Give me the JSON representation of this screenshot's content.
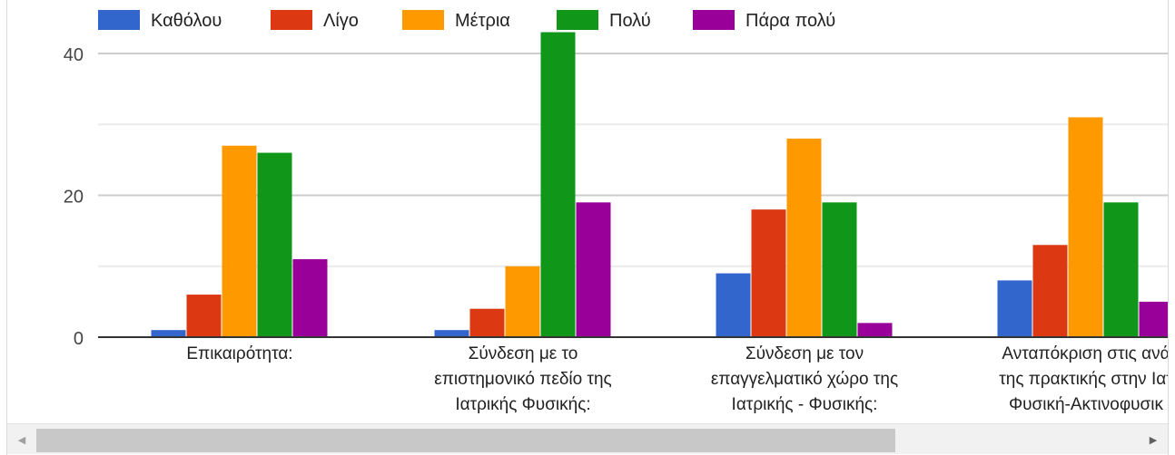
{
  "chart_data": {
    "type": "bar",
    "categories": [
      [
        "Επικαιρότητα:"
      ],
      [
        "Σύνδεση με το",
        "επιστημονικό πεδίο της",
        "Ιατρικής Φυσικής:"
      ],
      [
        "Σύνδεση με τον",
        "επαγγελματικό χώρο της",
        "Ιατρικής - Φυσικής:"
      ],
      [
        "Ανταπόκριση στις ανά",
        "της πρακτικής στην Ιατ",
        "Φυσική-Ακτινοφυσικ"
      ]
    ],
    "series": [
      {
        "name": "Καθόλου",
        "color": "#3366cc",
        "values": [
          1,
          1,
          9,
          8
        ]
      },
      {
        "name": "Λίγο",
        "color": "#dc3912",
        "values": [
          6,
          4,
          18,
          13
        ]
      },
      {
        "name": "Μέτρια",
        "color": "#ff9900",
        "values": [
          27,
          10,
          28,
          31
        ]
      },
      {
        "name": "Πολύ",
        "color": "#109618",
        "values": [
          26,
          43,
          19,
          19
        ]
      },
      {
        "name": "Πάρα πολύ",
        "color": "#990099",
        "values": [
          11,
          19,
          2,
          5
        ]
      }
    ],
    "yticks": [
      "0",
      "20",
      "40"
    ],
    "ylim": [
      0,
      45
    ],
    "grid": true,
    "legend": "top"
  },
  "scrollbar": {
    "left_arrow": "◀",
    "right_arrow": "▶"
  }
}
